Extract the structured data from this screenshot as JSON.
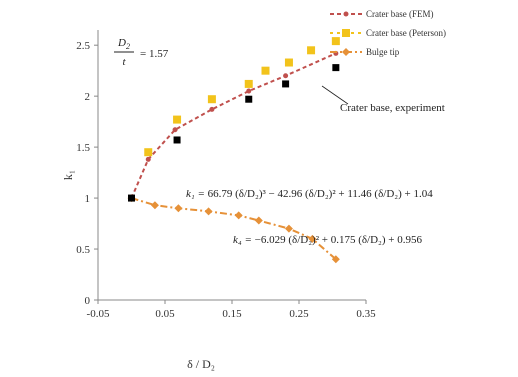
{
  "chart_data": {
    "type": "line",
    "xlabel": "δ / D₂",
    "ylabel": "k₁",
    "xlim": [
      -0.05,
      0.35
    ],
    "ylim": [
      0,
      2.6
    ],
    "xticks": [
      -0.05,
      0.05,
      0.15,
      0.25,
      0.35
    ],
    "xtick_labels": [
      "-0.05",
      "0.05",
      "0.15",
      "0.25",
      "0.35"
    ],
    "yticks": [
      0,
      0.5,
      1,
      1.5,
      2,
      2.5
    ],
    "ytick_labels": [
      "0",
      "0.5",
      "1",
      "1.5",
      "2",
      "2.5"
    ],
    "grid": false,
    "legend_position": "top-right",
    "series": [
      {
        "name": "Crater base (FEM)",
        "color": "#c0504d",
        "style": "dashed-line-small-markers",
        "x": [
          0,
          0.025,
          0.065,
          0.12,
          0.175,
          0.23,
          0.305
        ],
        "y": [
          1.0,
          1.38,
          1.67,
          1.87,
          2.05,
          2.2,
          2.42
        ]
      },
      {
        "name": "Crater base (Peterson)",
        "color": "#f2c31b",
        "style": "square-markers",
        "x": [
          0.025,
          0.068,
          0.12,
          0.175,
          0.2,
          0.235,
          0.268,
          0.305
        ],
        "y": [
          1.45,
          1.77,
          1.97,
          2.12,
          2.25,
          2.33,
          2.45,
          2.54
        ]
      },
      {
        "name": "Bulge tip",
        "color": "#e69138",
        "style": "dashdot-line-diamond-markers",
        "x": [
          0,
          0.035,
          0.07,
          0.115,
          0.16,
          0.19,
          0.235,
          0.27,
          0.305
        ],
        "y": [
          1.0,
          0.93,
          0.9,
          0.87,
          0.83,
          0.78,
          0.7,
          0.6,
          0.4
        ]
      },
      {
        "name": "Crater base, experiment",
        "color": "#000000",
        "style": "black-square-markers",
        "x": [
          0,
          0.068,
          0.175,
          0.23,
          0.305
        ],
        "y": [
          1.0,
          1.57,
          1.97,
          2.12,
          2.28
        ]
      }
    ]
  },
  "annotations": {
    "ratio": "= 1.57",
    "ratio_num": "D",
    "ratio_num_sub": "2",
    "ratio_den": "t",
    "experiment": "Crater base, experiment",
    "eq1_lhs": "k₁ = ",
    "eq1_rhs": "66.79 (δ/D₂)³ − 42.96 (δ/D₂)² + 11.46 (δ/D₂) + 1.04",
    "eq2_lhs": "k₄ = ",
    "eq2_rhs": "−6.029 (δ/D₂)² + 0.175 (δ/D₂) + 0.956"
  }
}
